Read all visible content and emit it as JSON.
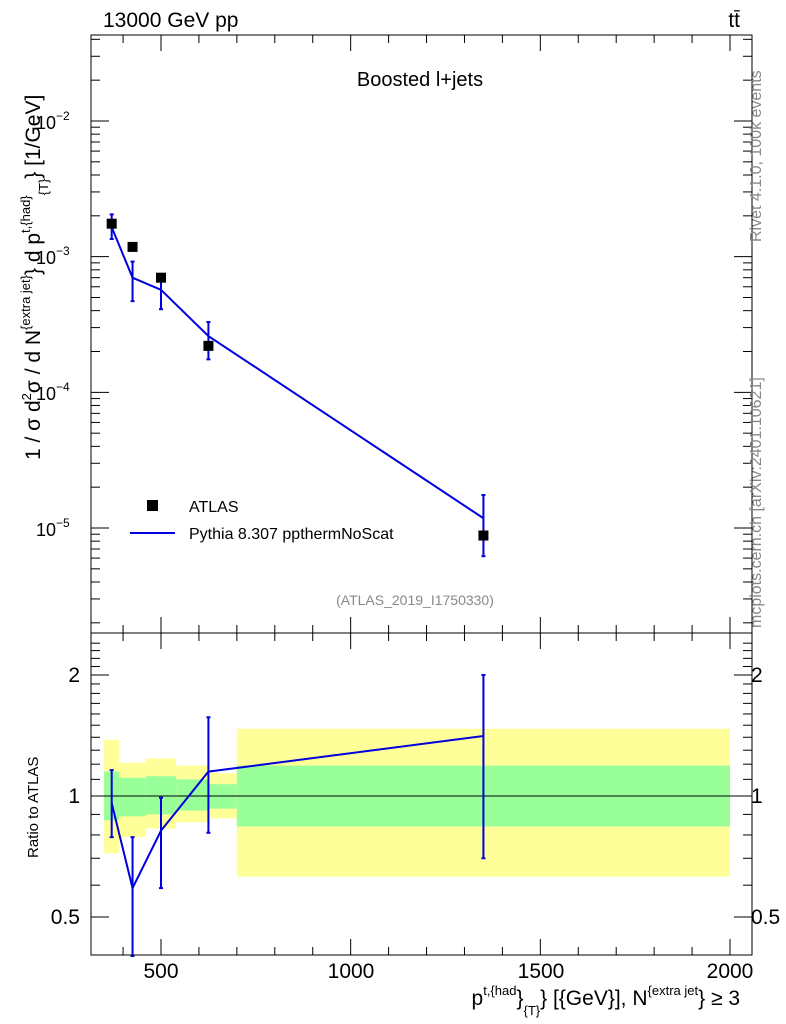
{
  "header": {
    "energy": "13000 GeV pp",
    "process": "tt̄",
    "plot_label": "Boosted l+jets",
    "analysis_id": "(ATLAS_2019_I1750330)",
    "side_rivet": "Rivet 4.1.0,  100k events",
    "side_mcplots": "mcplots.cern.ch [arXiv:2401.10621]"
  },
  "top_ticks": {
    "pow": "10",
    "exps": [
      "−2",
      "−3",
      "−4",
      "−5"
    ]
  },
  "ratio_ticks": [
    "2",
    "1",
    "0.5",
    "2",
    "1",
    "0.5"
  ],
  "x_ticks": [
    "500",
    "1000",
    "1500",
    "2000"
  ],
  "ylabel_parts": {
    "a": "1 / σ d",
    "b": "2",
    "c": "σ /  d N",
    "d": "{extra jet}",
    "e": "} d p",
    "f": "t,{had}",
    "g": "{T}",
    "h": "} [1/GeV]"
  },
  "xlabel_parts": {
    "a": "p",
    "b": "t,{had",
    "c": "}",
    "d": "{T}",
    "e": "} [{GeV}], N",
    "f": "{extra jet",
    "g": "} ≥ 3"
  },
  "ratio_ylabel": "Ratio to ATLAS",
  "legend": {
    "data": "ATLAS",
    "mc": "Pythia 8.307 ppthermNoScat"
  },
  "colors": {
    "mc": "#0000dd",
    "band_inner": "#99ff99",
    "band_outer": "#ffff99",
    "data": "#000000"
  },
  "chart_data": [
    {
      "type": "scatter",
      "title": "Boosted l+jets",
      "xlabel": "p_T^{t,had} [GeV], N^{extra jet} ≥ 3",
      "ylabel": "1/σ d²σ / dN^{extra jet} dp_T^{t,had} [1/GeV]",
      "yscale": "log",
      "xlim": [
        330,
        2060
      ],
      "ylim": [
        1.8e-06,
        0.05
      ],
      "series": [
        {
          "name": "ATLAS",
          "style": "markers",
          "x": [
            370,
            425,
            500,
            625,
            1350
          ],
          "y": [
            0.00175,
            0.00118,
            0.0007,
            0.00022,
            8.8e-06
          ],
          "xerr": [
            [
              350,
              390
            ],
            [
              390,
              460
            ],
            [
              460,
              540
            ],
            [
              540,
              700
            ],
            [
              700,
              2000
            ]
          ]
        },
        {
          "name": "Pythia 8.307 ppthermNoScat",
          "style": "line",
          "x": [
            370,
            425,
            500,
            625,
            1350
          ],
          "y": [
            0.00165,
            0.0007,
            0.00057,
            0.00026,
            1.18e-05
          ],
          "yerr_low": [
            0.00135,
            0.00047,
            0.00041,
            0.000175,
            6.2e-06
          ],
          "yerr_high": [
            0.00205,
            0.00092,
            0.00072,
            0.00033,
            1.75e-05
          ]
        }
      ]
    },
    {
      "type": "line",
      "title": "Ratio to ATLAS",
      "ylabel": "Ratio to ATLAS",
      "yscale": "log",
      "xlim": [
        330,
        2060
      ],
      "ylim": [
        0.43,
        2.35
      ],
      "reference": 1,
      "bands": [
        {
          "x0": 350,
          "x1": 390,
          "inner": [
            0.87,
            1.15
          ],
          "outer": [
            0.72,
            1.38
          ]
        },
        {
          "x0": 390,
          "x1": 460,
          "inner": [
            0.89,
            1.11
          ],
          "outer": [
            0.79,
            1.21
          ]
        },
        {
          "x0": 460,
          "x1": 540,
          "inner": [
            0.9,
            1.12
          ],
          "outer": [
            0.83,
            1.24
          ]
        },
        {
          "x0": 540,
          "x1": 625,
          "inner": [
            0.92,
            1.1
          ],
          "outer": [
            0.86,
            1.19
          ]
        },
        {
          "x0": 625,
          "x1": 700,
          "inner": [
            0.93,
            1.07
          ],
          "outer": [
            0.88,
            1.14
          ]
        },
        {
          "x0": 700,
          "x1": 2000,
          "inner": [
            0.84,
            1.19
          ],
          "outer": [
            0.63,
            1.47
          ]
        }
      ],
      "series": [
        {
          "name": "Pythia 8.307 ppthermNoScat / ATLAS",
          "x": [
            370,
            425,
            500,
            625,
            1350
          ],
          "y": [
            0.96,
            0.59,
            0.82,
            1.15,
            1.41
          ],
          "yerr_low": [
            0.79,
            0.4,
            0.59,
            0.81,
            0.7
          ],
          "yerr_high": [
            1.16,
            0.79,
            0.99,
            1.57,
            2.0
          ]
        }
      ]
    }
  ]
}
